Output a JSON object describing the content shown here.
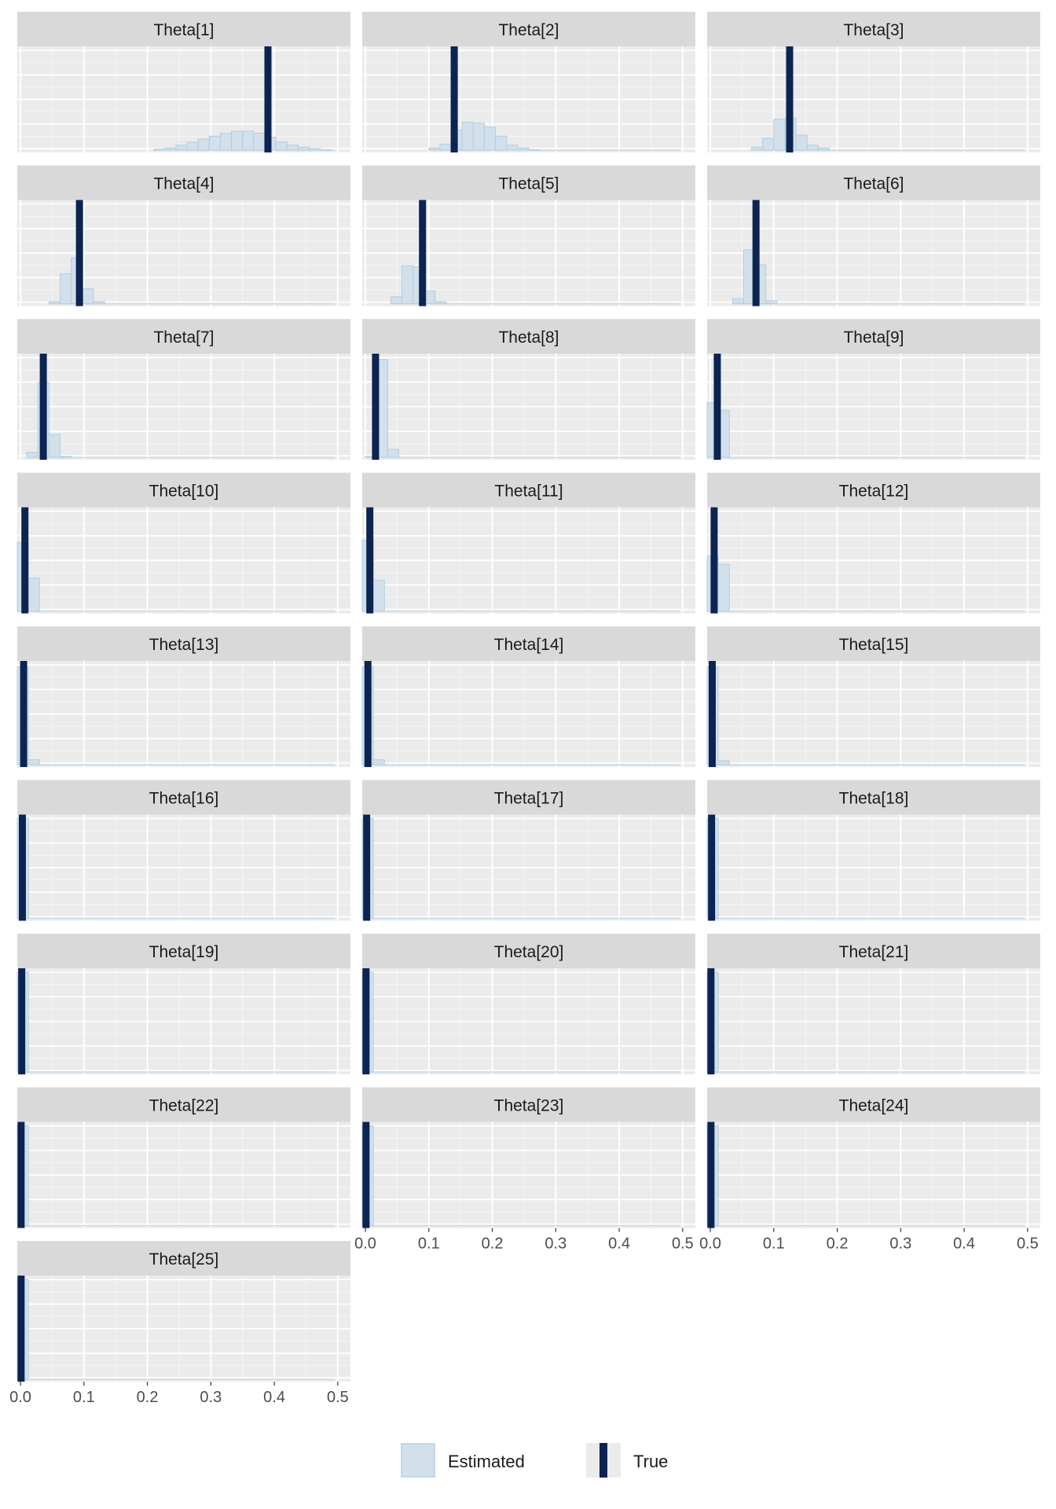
{
  "chart_data": {
    "type": "histogram-facets",
    "x_ticks": [
      "0.0",
      "0.1",
      "0.2",
      "0.3",
      "0.4",
      "0.5"
    ],
    "x_range": [
      -0.005,
      0.52
    ],
    "grid": true,
    "legend": {
      "placement": "bottom",
      "items": [
        {
          "label": "Estimated",
          "color": "#d2e0eb",
          "edge": "#b3cde0"
        },
        {
          "label": "True",
          "color": "#0b2452"
        }
      ]
    },
    "bin_width": 0.0175,
    "panels": [
      {
        "title": "Theta[1]",
        "true": 0.39,
        "bins_start": 0.21,
        "counts": [
          0.01,
          0.02,
          0.05,
          0.08,
          0.11,
          0.14,
          0.17,
          0.19,
          0.19,
          0.17,
          0.13,
          0.08,
          0.05,
          0.03,
          0.015,
          0.005
        ]
      },
      {
        "title": "Theta[2]",
        "true": 0.14,
        "bins_start": 0.1,
        "counts": [
          0.02,
          0.06,
          0.2,
          0.28,
          0.27,
          0.23,
          0.14,
          0.05,
          0.02,
          0.005
        ]
      },
      {
        "title": "Theta[3]",
        "true": 0.125,
        "bins_start": 0.065,
        "counts": [
          0.03,
          0.12,
          0.31,
          0.32,
          0.15,
          0.05,
          0.02
        ]
      },
      {
        "title": "Theta[4]",
        "true": 0.093,
        "bins_start": 0.045,
        "counts": [
          0.02,
          0.3,
          0.46,
          0.15,
          0.02
        ]
      },
      {
        "title": "Theta[5]",
        "true": 0.09,
        "bins_start": 0.04,
        "counts": [
          0.07,
          0.38,
          0.37,
          0.13,
          0.02
        ]
      },
      {
        "title": "Theta[6]",
        "true": 0.072,
        "bins_start": 0.035,
        "counts": [
          0.05,
          0.54,
          0.39,
          0.03
        ]
      },
      {
        "title": "Theta[7]",
        "true": 0.036,
        "bins_start": 0.01,
        "counts": [
          0.05,
          0.75,
          0.23,
          0.01
        ]
      },
      {
        "title": "Theta[8]",
        "true": 0.016,
        "bins_start": 0.0,
        "counts": [
          0.01,
          0.98,
          0.08
        ]
      },
      {
        "title": "Theta[9]",
        "true": 0.011,
        "bins_start": -0.005,
        "counts": [
          0.55,
          0.47
        ]
      },
      {
        "title": "Theta[10]",
        "true": 0.007,
        "bins_start": -0.005,
        "counts": [
          0.69,
          0.33
        ]
      },
      {
        "title": "Theta[11]",
        "true": 0.007,
        "bins_start": -0.005,
        "counts": [
          0.71,
          0.31
        ]
      },
      {
        "title": "Theta[12]",
        "true": 0.006,
        "bins_start": -0.005,
        "counts": [
          0.55,
          0.47
        ]
      },
      {
        "title": "Theta[13]",
        "true": 0.005,
        "bins_start": -0.005,
        "counts": [
          0.98,
          0.05
        ]
      },
      {
        "title": "Theta[14]",
        "true": 0.004,
        "bins_start": -0.005,
        "counts": [
          0.98,
          0.05
        ]
      },
      {
        "title": "Theta[15]",
        "true": 0.003,
        "bins_start": -0.005,
        "counts": [
          0.98,
          0.04
        ]
      },
      {
        "title": "Theta[16]",
        "true": 0.003,
        "bins_start": -0.005,
        "counts": [
          1.0
        ]
      },
      {
        "title": "Theta[17]",
        "true": 0.002,
        "bins_start": -0.005,
        "counts": [
          1.0
        ]
      },
      {
        "title": "Theta[18]",
        "true": 0.002,
        "bins_start": -0.005,
        "counts": [
          1.0
        ]
      },
      {
        "title": "Theta[19]",
        "true": 0.002,
        "bins_start": -0.005,
        "counts": [
          1.0
        ]
      },
      {
        "title": "Theta[20]",
        "true": 0.001,
        "bins_start": -0.005,
        "counts": [
          1.0
        ]
      },
      {
        "title": "Theta[21]",
        "true": 0.001,
        "bins_start": -0.005,
        "counts": [
          1.0
        ]
      },
      {
        "title": "Theta[22]",
        "true": 0.001,
        "bins_start": -0.005,
        "counts": [
          1.0
        ]
      },
      {
        "title": "Theta[23]",
        "true": 0.001,
        "bins_start": -0.005,
        "counts": [
          1.0
        ]
      },
      {
        "title": "Theta[24]",
        "true": 0.001,
        "bins_start": -0.005,
        "counts": [
          1.0
        ]
      },
      {
        "title": "Theta[25]",
        "true": 0.001,
        "bins_start": -0.005,
        "counts": [
          1.0
        ]
      }
    ]
  }
}
